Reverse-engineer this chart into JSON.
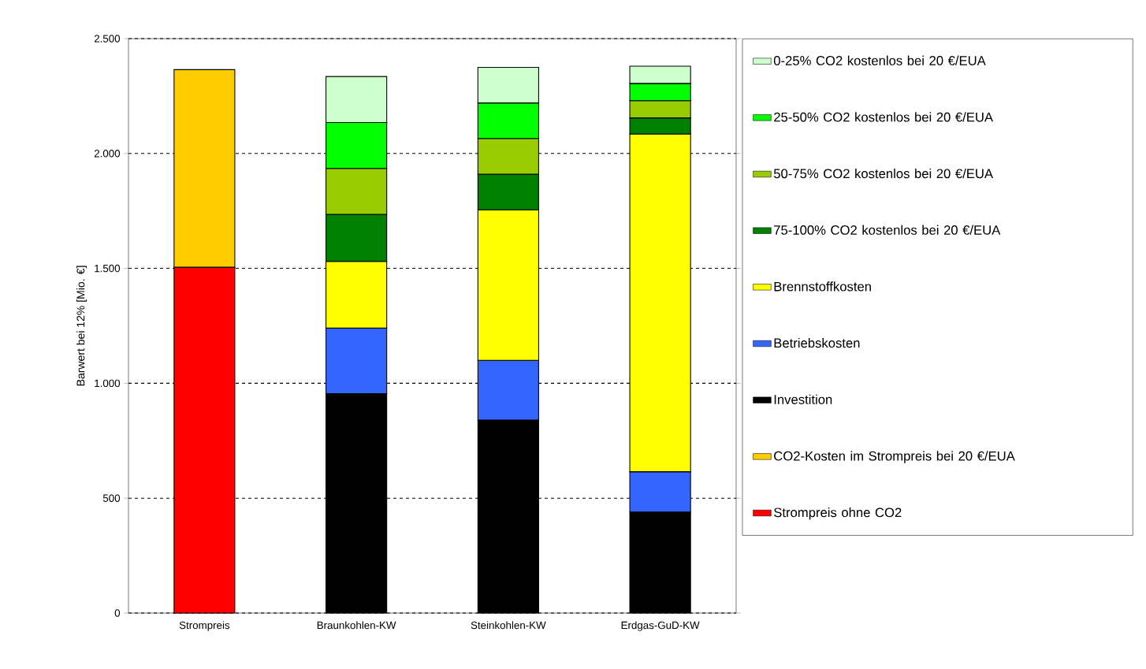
{
  "chart_data": {
    "type": "bar",
    "stacked": true,
    "ylabel": "Barwert bei 12% [Mio. €]",
    "categories": [
      "Strompreis",
      "Braunkohlen-KW",
      "Steinkohlen-KW",
      "Erdgas-GuD-KW"
    ],
    "series": [
      {
        "name": "Strompreis ohne CO2",
        "color": "#ff0000",
        "values": [
          1505,
          null,
          null,
          null
        ]
      },
      {
        "name": "CO2-Kosten im Strompreis bei 20 €/EUA",
        "color": "#ffcc00",
        "values": [
          860,
          null,
          null,
          null
        ]
      },
      {
        "name": "Investition",
        "color": "#000000",
        "values": [
          null,
          955,
          840,
          440
        ]
      },
      {
        "name": "Betriebskosten",
        "color": "#3366ff",
        "values": [
          null,
          285,
          260,
          175
        ]
      },
      {
        "name": "Brennstoffkosten",
        "color": "#ffff00",
        "values": [
          null,
          290,
          655,
          1470
        ]
      },
      {
        "name": "75-100% CO2 kostenlos bei 20 €/EUA",
        "color": "#008000",
        "values": [
          null,
          205,
          155,
          70
        ]
      },
      {
        "name": "50-75% CO2 kostenlos bei 20 €/EUA",
        "color": "#99cc00",
        "values": [
          null,
          200,
          155,
          75
        ]
      },
      {
        "name": "25-50% CO2 kostenlos bei 20 €/EUA",
        "color": "#00ff00",
        "values": [
          null,
          200,
          155,
          75
        ]
      },
      {
        "name": "0-25% CO2 kostenlos bei 20 €/EUA",
        "color": "#ccffcc",
        "values": [
          null,
          200,
          155,
          75
        ]
      }
    ],
    "ylim": [
      0,
      2500
    ],
    "yticks": [
      0,
      500,
      {
        "value": 1000,
        "label": "1.000"
      },
      {
        "value": 1500,
        "label": "1.500"
      },
      {
        "value": 2000,
        "label": "2.000"
      },
      {
        "value": 2500,
        "label": "2.500"
      }
    ],
    "grid": "y",
    "legend": "right"
  }
}
